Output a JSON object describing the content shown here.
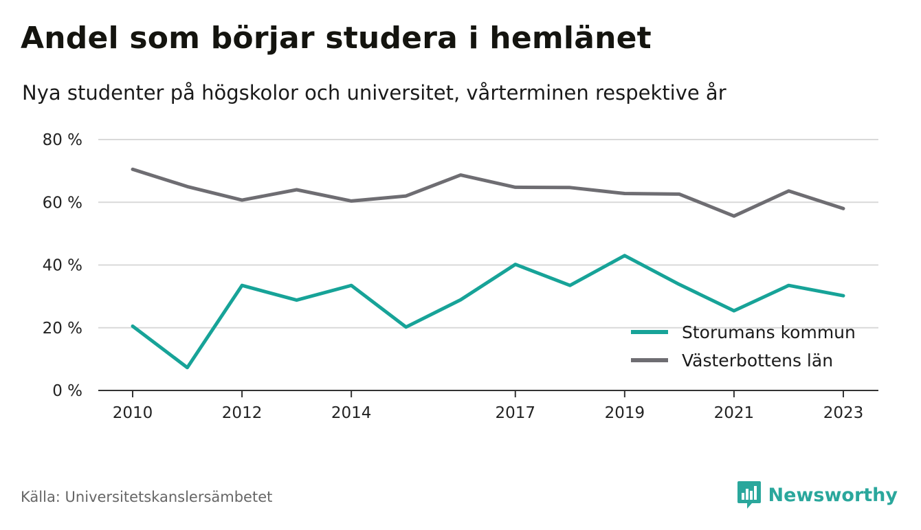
{
  "header": {
    "title": "Andel som börjar studera i hemlänet",
    "subtitle": "Nya studenter på högskolor och universitet, vårterminen respektive år"
  },
  "footer": {
    "source": "Källa: Universitetskanslersämbetet",
    "brand_name": "Newsworthy",
    "brand_icon": "chart-bubble-icon",
    "brand_color": "#2aa79c"
  },
  "chart_data": {
    "type": "line",
    "title": "Andel som börjar studera i hemlänet",
    "subtitle": "Nya studenter på högskolor och universitet, vårterminen respektive år",
    "x": [
      2010,
      2011,
      2012,
      2013,
      2014,
      2015,
      2016,
      2017,
      2018,
      2019,
      2020,
      2021,
      2022,
      2023
    ],
    "x_tick_labels": [
      "2010",
      "2012",
      "2014",
      "2017",
      "2019",
      "2021",
      "2023"
    ],
    "y_tick_labels": [
      "0 %",
      "20 %",
      "40 %",
      "60 %",
      "80 %"
    ],
    "ylim": [
      0,
      80
    ],
    "y_unit": "%",
    "grid": true,
    "legend_position": "bottom-right",
    "series": [
      {
        "name": "Storumans kommun",
        "color": "#17a398",
        "values": [
          20.5,
          7.3,
          33.5,
          28.8,
          33.5,
          20.2,
          28.9,
          40.2,
          33.5,
          43.0,
          33.8,
          25.4,
          33.5,
          30.2
        ]
      },
      {
        "name": "Västerbottens län",
        "color": "#6e6d72",
        "values": [
          70.5,
          65.0,
          60.7,
          64.0,
          60.4,
          62.0,
          68.7,
          64.8,
          64.7,
          62.8,
          62.6,
          55.6,
          63.6,
          58.0
        ]
      }
    ]
  }
}
